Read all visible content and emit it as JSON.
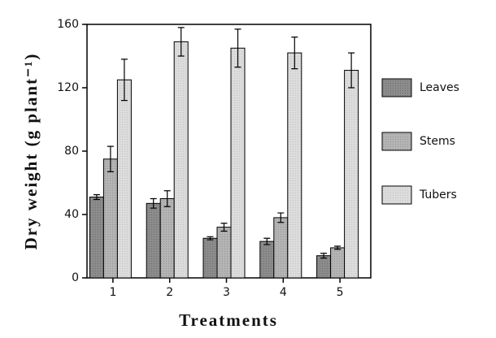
{
  "chart_data": {
    "type": "bar",
    "x_label": "Treatments",
    "y_label": "Dry weight (g plant⁻¹)",
    "categories": [
      "1",
      "2",
      "3",
      "4",
      "5"
    ],
    "series": [
      {
        "name": "Leaves",
        "color": "#8c8c8c",
        "values": [
          51,
          47,
          25,
          23,
          14
        ],
        "errors": [
          1.5,
          3,
          1,
          2,
          1.5
        ]
      },
      {
        "name": "Stems",
        "color": "#b4b4b4",
        "values": [
          75,
          50,
          32,
          38,
          19
        ],
        "errors": [
          8,
          5,
          2.5,
          3,
          1
        ]
      },
      {
        "name": "Tubers",
        "color": "#dcdcdc",
        "values": [
          125,
          149,
          145,
          142,
          131
        ],
        "errors": [
          13,
          9,
          12,
          10,
          11
        ]
      }
    ],
    "ylim": [
      0,
      160
    ],
    "yticks": [
      0,
      40,
      80,
      120,
      160
    ],
    "legend": "right"
  }
}
